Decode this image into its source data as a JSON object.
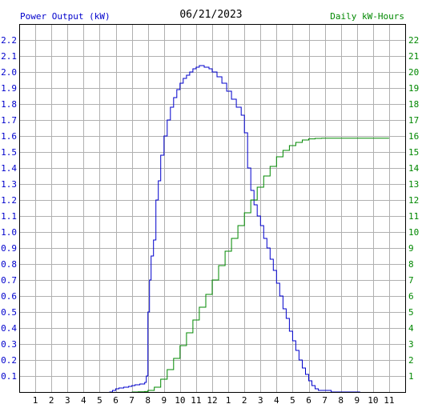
{
  "chart_data": {
    "type": "line",
    "title": "06/21/2023",
    "ylabel_left": "Power Output (kW)",
    "ylabel_right": "Daily kW-Hours",
    "colors": {
      "power": "#0000cc",
      "energy": "#008800",
      "grid": "#b0b0b0",
      "axis": "#000000"
    },
    "x_ticks": [
      "1",
      "2",
      "3",
      "4",
      "5",
      "6",
      "7",
      "8",
      "9",
      "10",
      "11",
      "12",
      "1",
      "2",
      "3",
      "4",
      "5",
      "6",
      "7",
      "8",
      "9",
      "10",
      "11"
    ],
    "xlim": [
      0,
      24
    ],
    "y_left_ticks": [
      "0.1",
      "0.2",
      "0.3",
      "0.4",
      "0.5",
      "0.6",
      "0.7",
      "0.8",
      "0.9",
      "1.0",
      "1.1",
      "1.2",
      "1.3",
      "1.4",
      "1.5",
      "1.6",
      "1.7",
      "1.8",
      "1.9",
      "2.0",
      "2.1",
      "2.2"
    ],
    "ylim_left": [
      0,
      2.3
    ],
    "y_right_ticks": [
      "1",
      "2",
      "3",
      "4",
      "5",
      "6",
      "7",
      "8",
      "9",
      "10",
      "11",
      "12",
      "13",
      "14",
      "15",
      "16",
      "17",
      "18",
      "19",
      "20",
      "21",
      "22"
    ],
    "ylim_right": [
      0,
      23
    ],
    "grid": true,
    "series": [
      {
        "name": "Power Output (kW)",
        "axis": "left",
        "x": [
          5.6,
          5.8,
          6.0,
          6.2,
          6.5,
          6.8,
          7.0,
          7.2,
          7.5,
          7.8,
          7.9,
          8.0,
          8.1,
          8.2,
          8.35,
          8.5,
          8.65,
          8.8,
          9.0,
          9.2,
          9.4,
          9.6,
          9.8,
          10.0,
          10.2,
          10.4,
          10.6,
          10.8,
          11.0,
          11.2,
          11.5,
          11.8,
          12.0,
          12.3,
          12.6,
          12.9,
          13.2,
          13.5,
          13.8,
          14.0,
          14.2,
          14.4,
          14.6,
          14.8,
          15.0,
          15.2,
          15.4,
          15.6,
          15.8,
          16.0,
          16.2,
          16.4,
          16.6,
          16.8,
          17.0,
          17.2,
          17.4,
          17.6,
          17.8,
          18.0,
          18.2,
          18.4,
          18.6,
          18.8,
          19.0,
          19.2,
          19.4,
          19.6,
          19.8,
          20.0,
          20.3,
          20.6,
          20.9,
          21.2
        ],
        "y": [
          0.0,
          0.01,
          0.02,
          0.025,
          0.03,
          0.035,
          0.04,
          0.045,
          0.05,
          0.06,
          0.1,
          0.5,
          0.7,
          0.85,
          0.95,
          1.2,
          1.32,
          1.48,
          1.6,
          1.7,
          1.78,
          1.84,
          1.89,
          1.93,
          1.96,
          1.98,
          2.0,
          2.02,
          2.03,
          2.04,
          2.03,
          2.02,
          2.0,
          1.97,
          1.93,
          1.88,
          1.83,
          1.78,
          1.73,
          1.62,
          1.4,
          1.26,
          1.17,
          1.1,
          1.04,
          0.96,
          0.9,
          0.83,
          0.76,
          0.68,
          0.6,
          0.52,
          0.46,
          0.38,
          0.32,
          0.26,
          0.2,
          0.15,
          0.11,
          0.07,
          0.04,
          0.02,
          0.01,
          0.01,
          0.01,
          0.01,
          0.0,
          0.0,
          0.0,
          0.0,
          0.0,
          0.0,
          0.0,
          0.0
        ]
      },
      {
        "name": "Daily kW-Hours",
        "axis": "right",
        "x": [
          7.0,
          7.4,
          7.8,
          8.0,
          8.4,
          8.8,
          9.2,
          9.6,
          10.0,
          10.4,
          10.8,
          11.2,
          11.6,
          12.0,
          12.4,
          12.8,
          13.2,
          13.6,
          14.0,
          14.4,
          14.8,
          15.2,
          15.6,
          16.0,
          16.4,
          16.8,
          17.2,
          17.6,
          18.0,
          18.4,
          18.8,
          19.2,
          20.0,
          21.0,
          22.0,
          23.0
        ],
        "y": [
          0.0,
          0.01,
          0.03,
          0.1,
          0.3,
          0.8,
          1.4,
          2.1,
          2.9,
          3.7,
          4.5,
          5.3,
          6.1,
          7.0,
          7.9,
          8.8,
          9.6,
          10.4,
          11.2,
          12.0,
          12.8,
          13.5,
          14.1,
          14.7,
          15.1,
          15.4,
          15.6,
          15.75,
          15.82,
          15.85,
          15.86,
          15.86,
          15.86,
          15.86,
          15.86,
          15.86
        ]
      }
    ]
  }
}
